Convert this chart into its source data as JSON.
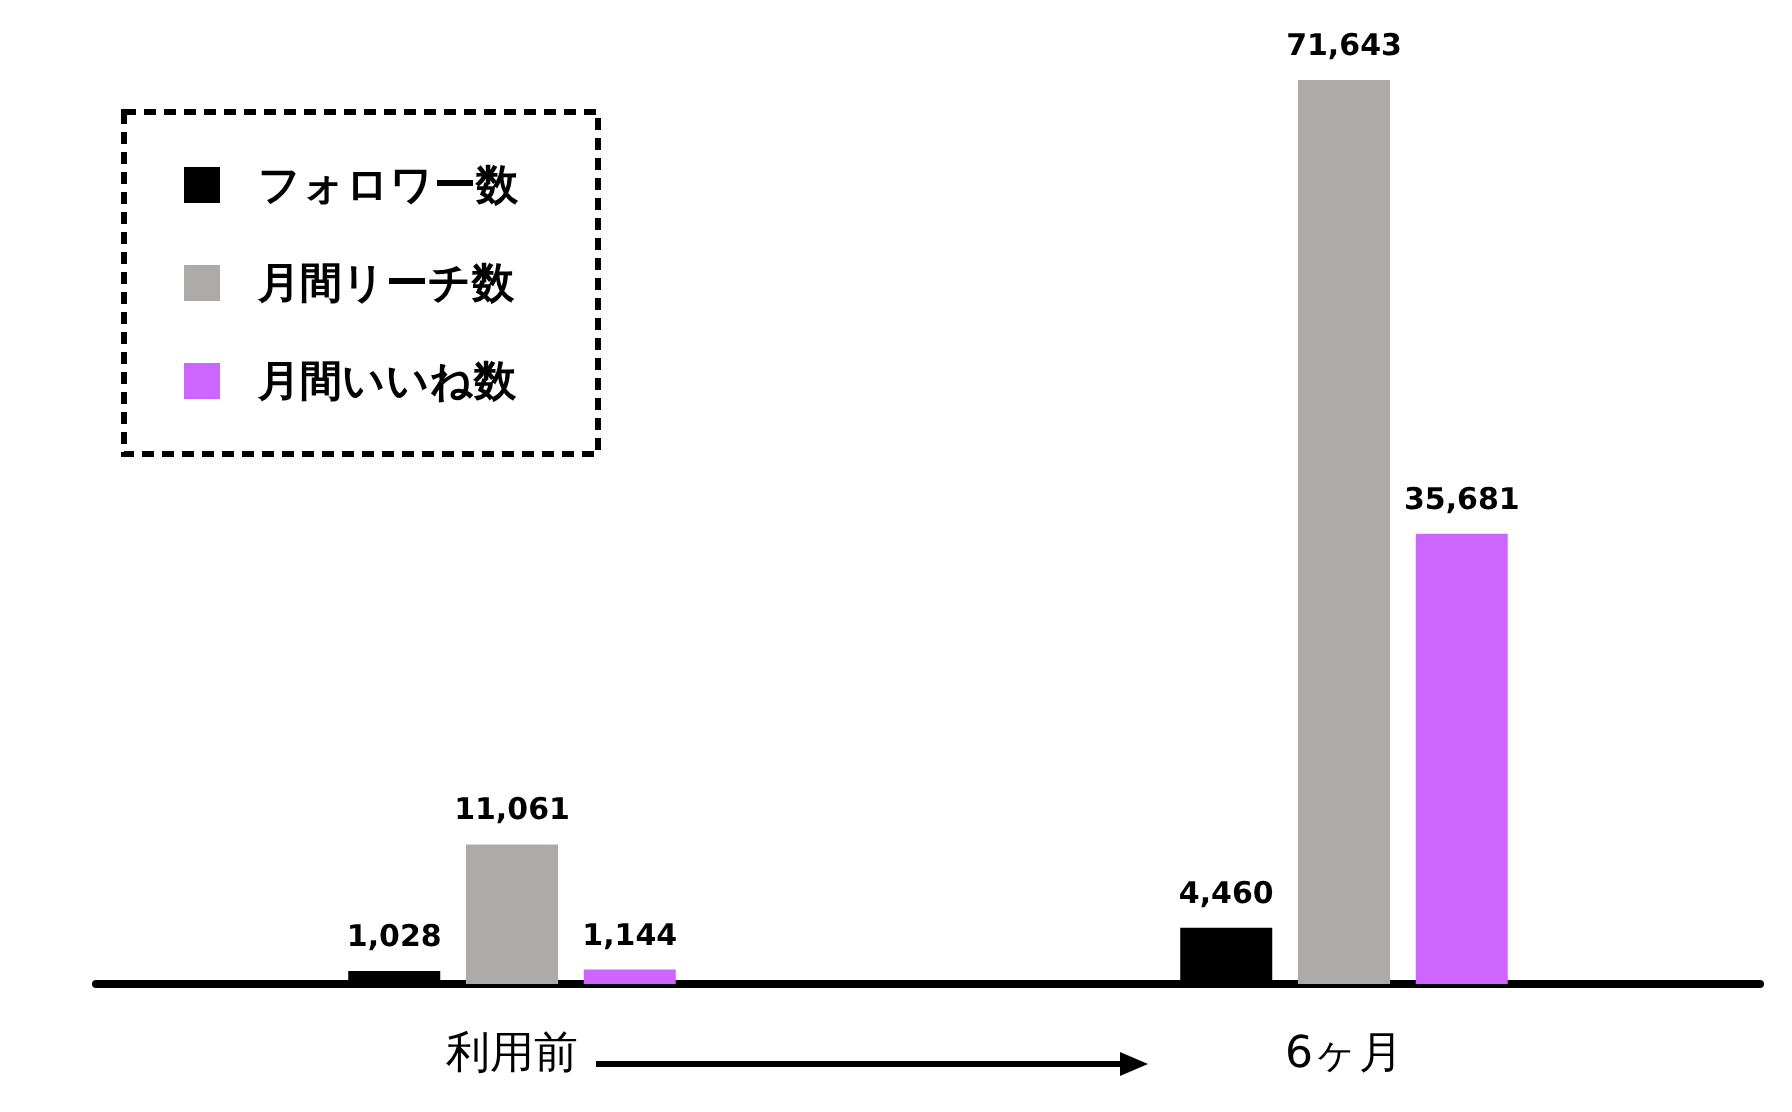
{
  "chart_data": {
    "type": "bar",
    "categories": [
      "利用前",
      "6ヶ月"
    ],
    "series": [
      {
        "name": "フォロワー数",
        "color": "#000000",
        "values": [
          1028,
          4460
        ],
        "value_labels": [
          "1,028",
          "4,460"
        ]
      },
      {
        "name": "月間リーチ数",
        "color": "#aeaaaa",
        "values": [
          11061,
          71643
        ],
        "value_labels": [
          "11,061",
          "71,643"
        ]
      },
      {
        "name": "月間いいね数",
        "color": "#cc66ff",
        "values": [
          1144,
          35681
        ],
        "value_labels": [
          "1,144",
          "35,681"
        ]
      }
    ],
    "legend": "top left",
    "tick_labels": "x"
  }
}
